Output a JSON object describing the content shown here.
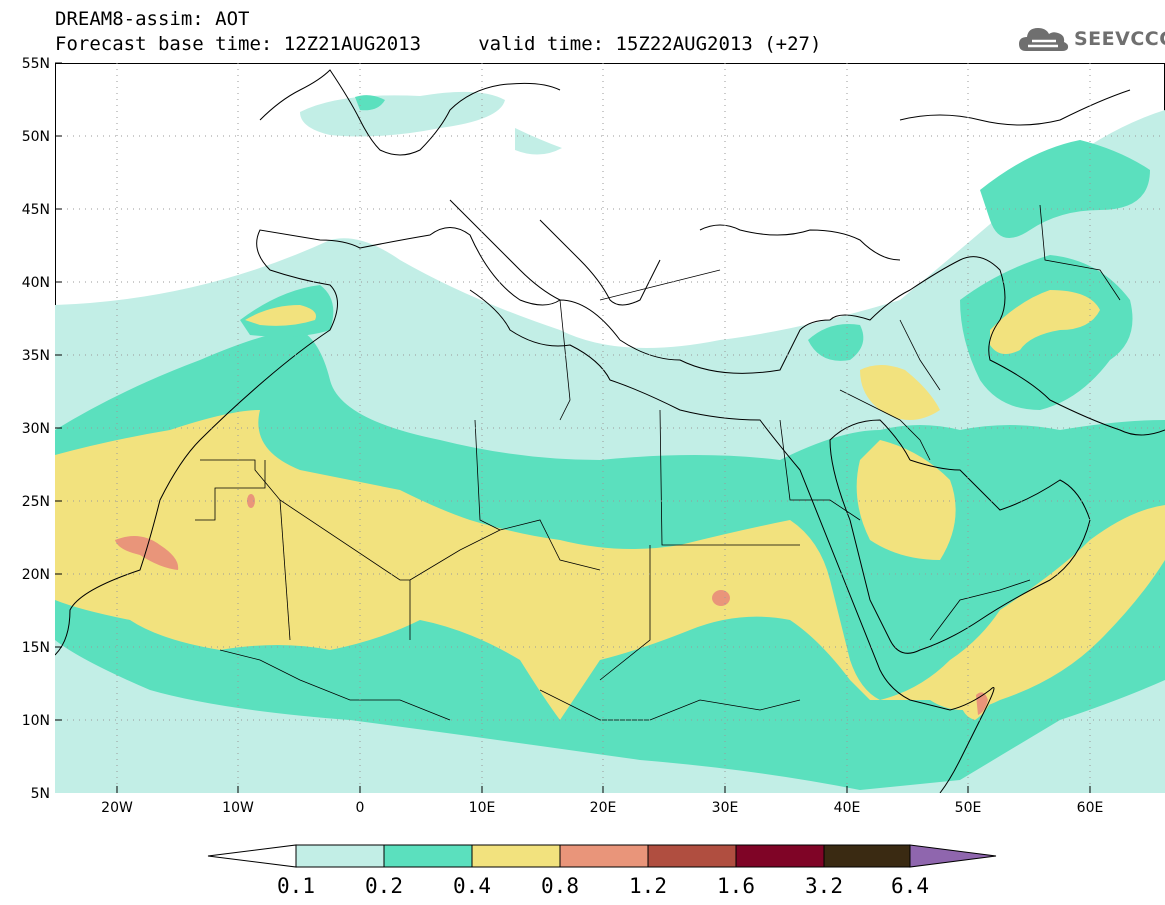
{
  "header": {
    "line1": "DREAM8-assim: AOT",
    "line2": "Forecast base time: 12Z21AUG2013     valid time: 15Z22AUG2013 (+27)"
  },
  "logo": {
    "text": "SEEVCCC",
    "icon": "cloud-icon"
  },
  "map": {
    "lat_labels": [
      "55N",
      "50N",
      "45N",
      "40N",
      "35N",
      "30N",
      "25N",
      "20N",
      "15N",
      "10N",
      "5N"
    ],
    "lon_labels": [
      "20W",
      "10W",
      "0",
      "10E",
      "20E",
      "30E",
      "40E",
      "50E",
      "60E"
    ],
    "lat_range": [
      5,
      55
    ],
    "lon_range": [
      -25,
      65
    ],
    "grid": "dotted"
  },
  "colorbar": {
    "labels": [
      "0.1",
      "0.2",
      "0.4",
      "0.8",
      "1.2",
      "1.6",
      "3.2",
      "6.4"
    ],
    "colors": [
      "#ffffff",
      "#c2eee6",
      "#5be0be",
      "#f2e27e",
      "#e9957a",
      "#b04e40",
      "#7f0426",
      "#3a2a12",
      "#8f66ae"
    ]
  }
}
